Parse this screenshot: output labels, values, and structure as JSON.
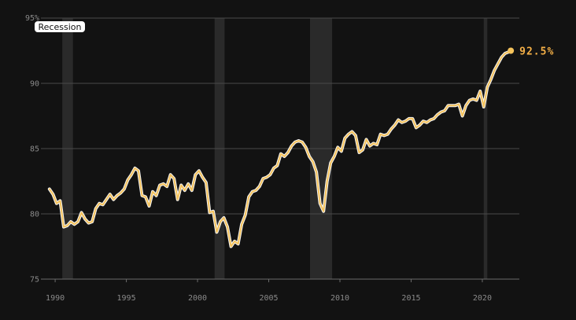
{
  "colors": {
    "background": "#121212",
    "line": "#f5c35c",
    "end_label": "#f5b047",
    "recession_band": "#2a2a2a",
    "grid": "#4a4a4a",
    "tick": "#8a8a8a"
  },
  "legend": {
    "recession_label": "Recession"
  },
  "chart_data": {
    "type": "line",
    "title": "",
    "xlabel": "",
    "ylabel": "",
    "xlim": [
      1989,
      2022.6
    ],
    "ylim": [
      75,
      95
    ],
    "y_ticks": [
      75,
      80,
      85,
      90,
      95
    ],
    "y_tick_labels": [
      "75",
      "80",
      "85",
      "90",
      "95%"
    ],
    "x_ticks": [
      1990,
      1995,
      2000,
      2005,
      2010,
      2015,
      2020
    ],
    "x_tick_labels": [
      "1990",
      "1995",
      "2000",
      "2005",
      "2010",
      "2015",
      "2020"
    ],
    "grid": true,
    "recessions": [
      [
        1990.5,
        1991.25
      ],
      [
        2001.2,
        2001.9
      ],
      [
        2007.9,
        2009.45
      ],
      [
        2020.1,
        2020.35
      ]
    ],
    "end_label": "92.5%",
    "series": [
      {
        "x": [
          1989.6,
          1989.85,
          1990.1,
          1990.35,
          1990.6,
          1990.85,
          1991.1,
          1991.35,
          1991.6,
          1991.85,
          1992.1,
          1992.35,
          1992.6,
          1992.85,
          1993.1,
          1993.35,
          1993.6,
          1993.85,
          1994.1,
          1994.35,
          1994.6,
          1994.85,
          1995.1,
          1995.35,
          1995.6,
          1995.85,
          1996.1,
          1996.35,
          1996.6,
          1996.85,
          1997.1,
          1997.35,
          1997.6,
          1997.85,
          1998.1,
          1998.35,
          1998.6,
          1998.85,
          1999.1,
          1999.35,
          1999.6,
          1999.85,
          2000.1,
          2000.35,
          2000.6,
          2000.85,
          2001.1,
          2001.35,
          2001.6,
          2001.85,
          2002.1,
          2002.35,
          2002.6,
          2002.85,
          2003.1,
          2003.35,
          2003.6,
          2003.85,
          2004.1,
          2004.35,
          2004.6,
          2004.85,
          2005.1,
          2005.35,
          2005.6,
          2005.85,
          2006.1,
          2006.35,
          2006.6,
          2006.85,
          2007.1,
          2007.35,
          2007.6,
          2007.85,
          2008.1,
          2008.35,
          2008.6,
          2008.85,
          2009.1,
          2009.35,
          2009.6,
          2009.85,
          2010.1,
          2010.35,
          2010.6,
          2010.85,
          2011.1,
          2011.35,
          2011.6,
          2011.85,
          2012.1,
          2012.35,
          2012.6,
          2012.85,
          2013.1,
          2013.35,
          2013.6,
          2013.85,
          2014.1,
          2014.35,
          2014.6,
          2014.85,
          2015.1,
          2015.35,
          2015.6,
          2015.85,
          2016.1,
          2016.35,
          2016.6,
          2016.85,
          2017.1,
          2017.35,
          2017.6,
          2017.85,
          2018.1,
          2018.35,
          2018.6,
          2018.85,
          2019.1,
          2019.35,
          2019.6,
          2019.85,
          2020.1,
          2020.35,
          2020.6,
          2020.85,
          2021.1,
          2021.35,
          2021.6,
          2021.85,
          2022.0
        ],
        "values": [
          81.9,
          81.5,
          80.8,
          81.0,
          79.0,
          79.1,
          79.4,
          79.2,
          79.4,
          80.1,
          79.6,
          79.3,
          79.4,
          80.4,
          80.8,
          80.7,
          81.1,
          81.5,
          81.1,
          81.4,
          81.6,
          81.9,
          82.6,
          83.0,
          83.5,
          83.3,
          81.4,
          81.3,
          80.6,
          81.7,
          81.4,
          82.2,
          82.3,
          82.1,
          83.0,
          82.7,
          81.1,
          82.2,
          81.8,
          82.3,
          81.8,
          83.0,
          83.3,
          82.8,
          82.4,
          80.1,
          80.2,
          78.6,
          79.4,
          79.7,
          79.0,
          77.5,
          77.9,
          77.7,
          79.2,
          79.9,
          81.3,
          81.7,
          81.8,
          82.1,
          82.7,
          82.8,
          83.0,
          83.5,
          83.7,
          84.6,
          84.4,
          84.7,
          85.2,
          85.5,
          85.6,
          85.5,
          85.1,
          84.4,
          84.0,
          83.2,
          80.8,
          80.2,
          82.5,
          83.9,
          84.4,
          85.1,
          84.8,
          85.8,
          86.1,
          86.3,
          86.0,
          84.7,
          84.9,
          85.7,
          85.2,
          85.4,
          85.3,
          86.1,
          86.0,
          86.1,
          86.5,
          86.8,
          87.2,
          87.0,
          87.1,
          87.3,
          87.3,
          86.6,
          86.8,
          87.1,
          87.0,
          87.2,
          87.3,
          87.6,
          87.8,
          87.9,
          88.3,
          88.3,
          88.3,
          88.4,
          87.5,
          88.3,
          88.7,
          88.8,
          88.7,
          89.4,
          88.2,
          89.7,
          90.3,
          91.0,
          91.5,
          92.0,
          92.3,
          92.4,
          92.5
        ]
      }
    ]
  }
}
